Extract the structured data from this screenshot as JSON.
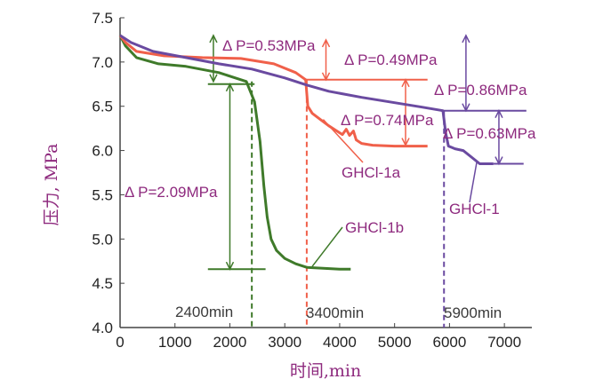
{
  "chart_data": {
    "type": "line",
    "xlabel": "时间,min",
    "ylabel": "压力, MPa",
    "xlim": [
      0,
      7500
    ],
    "ylim": [
      4.0,
      7.5
    ],
    "x_ticks": [
      "0",
      "1000",
      "2000",
      "3000",
      "4000",
      "5000",
      "6000",
      "7000"
    ],
    "y_ticks": [
      "4.0",
      "4.5",
      "5.0",
      "5.5",
      "6.0",
      "6.5",
      "7.0",
      "7.5"
    ],
    "grid": false,
    "series": [
      {
        "name": "GHCl-1b",
        "color": "#3f7a2a",
        "points": [
          [
            0,
            7.3
          ],
          [
            100,
            7.18
          ],
          [
            300,
            7.05
          ],
          [
            700,
            6.98
          ],
          [
            1200,
            6.95
          ],
          [
            1800,
            6.88
          ],
          [
            2100,
            6.82
          ],
          [
            2300,
            6.78
          ],
          [
            2450,
            6.55
          ],
          [
            2550,
            6.1
          ],
          [
            2620,
            5.6
          ],
          [
            2680,
            5.25
          ],
          [
            2750,
            5.0
          ],
          [
            2850,
            4.87
          ],
          [
            3000,
            4.78
          ],
          [
            3200,
            4.72
          ],
          [
            3400,
            4.68
          ],
          [
            3700,
            4.67
          ],
          [
            4000,
            4.66
          ],
          [
            4200,
            4.66
          ]
        ]
      },
      {
        "name": "GHCl-1a",
        "color": "#f0604a",
        "points": [
          [
            0,
            7.3
          ],
          [
            100,
            7.22
          ],
          [
            300,
            7.12
          ],
          [
            800,
            7.07
          ],
          [
            1500,
            7.05
          ],
          [
            2200,
            7.04
          ],
          [
            2800,
            6.98
          ],
          [
            3200,
            6.88
          ],
          [
            3380,
            6.8
          ],
          [
            3420,
            6.5
          ],
          [
            3500,
            6.42
          ],
          [
            3650,
            6.35
          ],
          [
            3800,
            6.28
          ],
          [
            3950,
            6.22
          ],
          [
            4050,
            6.18
          ],
          [
            4120,
            6.24
          ],
          [
            4180,
            6.17
          ],
          [
            4250,
            6.22
          ],
          [
            4300,
            6.12
          ],
          [
            4400,
            6.08
          ],
          [
            4600,
            6.06
          ],
          [
            5000,
            6.05
          ],
          [
            5600,
            6.05
          ]
        ]
      },
      {
        "name": "GHCl-1",
        "color": "#6a4aa0",
        "points": [
          [
            0,
            7.3
          ],
          [
            200,
            7.22
          ],
          [
            600,
            7.12
          ],
          [
            1200,
            7.05
          ],
          [
            1800,
            6.98
          ],
          [
            2400,
            6.92
          ],
          [
            3000,
            6.82
          ],
          [
            3400,
            6.74
          ],
          [
            3800,
            6.67
          ],
          [
            4400,
            6.6
          ],
          [
            5000,
            6.54
          ],
          [
            5500,
            6.49
          ],
          [
            5880,
            6.45
          ],
          [
            5930,
            6.2
          ],
          [
            5980,
            6.05
          ],
          [
            6100,
            6.02
          ],
          [
            6250,
            6.0
          ],
          [
            6450,
            5.9
          ],
          [
            6550,
            5.85
          ],
          [
            6800,
            5.85
          ]
        ]
      }
    ],
    "series_labels": [
      {
        "text": "GHCl-1b",
        "color": "#3f7a2a"
      },
      {
        "text": "GHCl-1a",
        "color": "#f0604a"
      },
      {
        "text": "GHCl-1",
        "color": "#6a4aa0"
      }
    ],
    "vlines": [
      {
        "x": 2400,
        "label": "2400min",
        "color": "#3f7a2a"
      },
      {
        "x": 3400,
        "label": "3400min",
        "color": "#f0604a"
      },
      {
        "x": 5900,
        "label": "5900min",
        "color": "#6a4aa0"
      }
    ],
    "annotations": [
      {
        "text": "Δ P=0.53MPa",
        "color": "#8e2a7e"
      },
      {
        "text": "Δ P=0.49MPa",
        "color": "#8e2a7e"
      },
      {
        "text": "Δ P=0.86MPa",
        "color": "#8e2a7e"
      },
      {
        "text": "Δ P=0.74MPa",
        "color": "#8e2a7e"
      },
      {
        "text": "Δ P=0.63MPa",
        "color": "#8e2a7e"
      },
      {
        "text": "Δ P=2.09MPa",
        "color": "#8e2a7e"
      }
    ]
  }
}
